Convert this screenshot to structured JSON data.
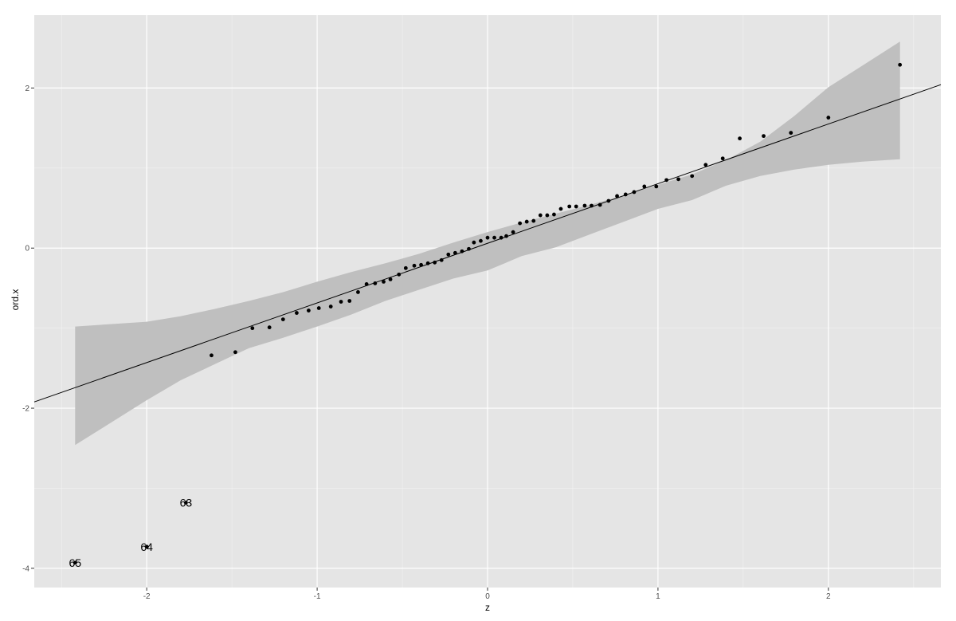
{
  "chart_data": {
    "type": "scatter",
    "title": "",
    "xlabel": "z",
    "ylabel": "ord.x",
    "xlim": [
      -2.66,
      2.66
    ],
    "ylim": [
      -4.24,
      2.91
    ],
    "xticks": [
      -2,
      -1,
      0,
      1,
      2
    ],
    "yticks": [
      -4,
      -2,
      0,
      2
    ],
    "xtick_labels": [
      "-2",
      "-1",
      "0",
      "1",
      "2"
    ],
    "ytick_labels": [
      "-4",
      "-2",
      "0",
      "2"
    ],
    "grid": true,
    "legend": "none",
    "colors": {
      "panel": "#e5e5e5",
      "grid_major": "#ffffff",
      "grid_minor": "#f2f2f2",
      "band": "#bfbfbf",
      "points": "#000000",
      "line": "#000000"
    },
    "reference_line": {
      "intercept": 0.06,
      "slope": 0.745
    },
    "confidence_band": {
      "x": [
        -2.42,
        -2.0,
        -1.8,
        -1.6,
        -1.4,
        -1.2,
        -1.0,
        -0.8,
        -0.6,
        -0.4,
        -0.2,
        0.0,
        0.2,
        0.4,
        0.6,
        0.8,
        1.0,
        1.2,
        1.4,
        1.6,
        1.8,
        2.0,
        2.2,
        2.42
      ],
      "upper": [
        -0.98,
        -0.92,
        -0.85,
        -0.76,
        -0.66,
        -0.55,
        -0.42,
        -0.3,
        -0.19,
        -0.07,
        0.07,
        0.2,
        0.32,
        0.43,
        0.54,
        0.66,
        0.79,
        0.92,
        1.1,
        1.33,
        1.65,
        2.01,
        2.28,
        2.58
      ],
      "lower": [
        -2.46,
        -1.9,
        -1.65,
        -1.45,
        -1.25,
        -1.12,
        -0.98,
        -0.83,
        -0.66,
        -0.52,
        -0.38,
        -0.28,
        -0.1,
        0.01,
        0.17,
        0.33,
        0.49,
        0.6,
        0.78,
        0.9,
        0.98,
        1.04,
        1.08,
        1.11
      ]
    },
    "points": {
      "x": [
        -1.62,
        -1.48,
        -1.38,
        -1.28,
        -1.2,
        -1.12,
        -1.05,
        -0.99,
        -0.92,
        -0.86,
        -0.81,
        -0.76,
        -0.71,
        -0.66,
        -0.61,
        -0.57,
        -0.52,
        -0.48,
        -0.43,
        -0.39,
        -0.35,
        -0.31,
        -0.27,
        -0.23,
        -0.19,
        -0.15,
        -0.11,
        -0.08,
        -0.04,
        0.0,
        0.04,
        0.08,
        0.11,
        0.15,
        0.19,
        0.23,
        0.27,
        0.31,
        0.35,
        0.39,
        0.43,
        0.48,
        0.52,
        0.57,
        0.61,
        0.66,
        0.71,
        0.76,
        0.81,
        0.86,
        0.92,
        0.99,
        1.05,
        1.12,
        1.2,
        1.28,
        1.38,
        1.48,
        1.62,
        1.78,
        2.0,
        2.42
      ],
      "y": [
        -1.34,
        -1.3,
        -1.0,
        -0.99,
        -0.89,
        -0.81,
        -0.78,
        -0.75,
        -0.73,
        -0.67,
        -0.66,
        -0.55,
        -0.45,
        -0.44,
        -0.42,
        -0.39,
        -0.33,
        -0.25,
        -0.22,
        -0.21,
        -0.19,
        -0.18,
        -0.15,
        -0.08,
        -0.06,
        -0.04,
        -0.01,
        0.07,
        0.09,
        0.13,
        0.13,
        0.13,
        0.15,
        0.2,
        0.31,
        0.33,
        0.34,
        0.41,
        0.41,
        0.42,
        0.49,
        0.52,
        0.52,
        0.53,
        0.53,
        0.54,
        0.59,
        0.65,
        0.67,
        0.7,
        0.77,
        0.77,
        0.85,
        0.86,
        0.9,
        1.04,
        1.12,
        1.37,
        1.4,
        1.44,
        1.63,
        2.29
      ]
    },
    "labeled_points": [
      {
        "x": -1.77,
        "y": -3.18,
        "label": "63"
      },
      {
        "x": -2.0,
        "y": -3.73,
        "label": "64"
      },
      {
        "x": -2.42,
        "y": -3.93,
        "label": "65"
      }
    ]
  }
}
